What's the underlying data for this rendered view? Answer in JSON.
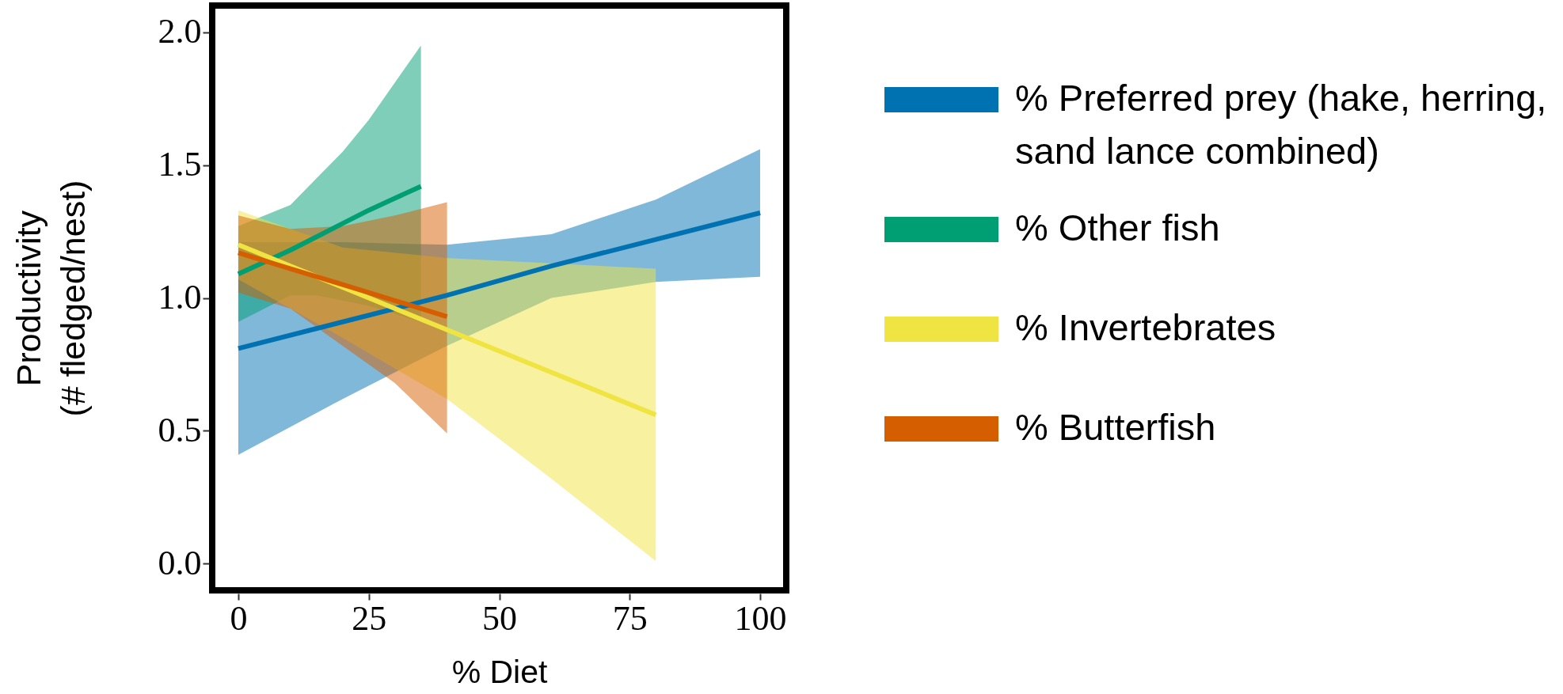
{
  "chart_data": {
    "type": "line",
    "xlabel": "% Diet",
    "ylabel": "Productivity\n(# fledged/nest)",
    "xlim": [
      -5,
      105
    ],
    "xticks": [
      0,
      25,
      50,
      75,
      100
    ],
    "ylim": [
      -0.1,
      2.1
    ],
    "yticks": [
      {
        "value": 0,
        "label": "0.0"
      },
      {
        "value": 0.5,
        "label": "0.5"
      },
      {
        "value": 1,
        "label": "1.0"
      },
      {
        "value": 1.5,
        "label": "1.5"
      },
      {
        "value": 2,
        "label": "2.0"
      }
    ],
    "grid": false,
    "legend": "right",
    "line_style": "solid",
    "series": [
      {
        "name": "% Preferred prey (hake, herring, sand lance combined)",
        "color": "#0072b2",
        "x": [
          0,
          20,
          40,
          60,
          80,
          100
        ],
        "values": [
          0.81,
          0.91,
          1.01,
          1.12,
          1.22,
          1.32
        ],
        "lower": [
          0.41,
          0.62,
          0.82,
          1.0,
          1.06,
          1.08
        ],
        "upper": [
          1.21,
          1.21,
          1.2,
          1.24,
          1.37,
          1.56
        ]
      },
      {
        "name": "% Other fish",
        "color": "#009e73",
        "x": [
          0,
          10,
          15,
          20,
          25,
          35
        ],
        "values": [
          1.09,
          1.18,
          1.23,
          1.28,
          1.33,
          1.42
        ],
        "lower": [
          0.91,
          1.01,
          1.01,
          0.99,
          0.97,
          0.91
        ],
        "upper": [
          1.27,
          1.35,
          1.45,
          1.55,
          1.67,
          1.95
        ]
      },
      {
        "name": "% Invertebrates",
        "color": "#f0e442",
        "x": [
          0,
          10,
          20,
          40,
          60,
          80
        ],
        "values": [
          1.2,
          1.12,
          1.04,
          0.88,
          0.72,
          0.56
        ],
        "lower": [
          1.07,
          0.96,
          0.85,
          0.62,
          0.32,
          0.01
        ],
        "upper": [
          1.33,
          1.26,
          1.19,
          1.15,
          1.13,
          1.11
        ]
      },
      {
        "name": "% Butterfish",
        "color": "#d55e00",
        "x": [
          0,
          10,
          20,
          30,
          40
        ],
        "values": [
          1.17,
          1.11,
          1.05,
          0.99,
          0.93
        ],
        "lower": [
          1.02,
          0.96,
          0.82,
          0.68,
          0.49
        ],
        "upper": [
          1.31,
          1.26,
          1.27,
          1.31,
          1.36
        ]
      }
    ]
  }
}
